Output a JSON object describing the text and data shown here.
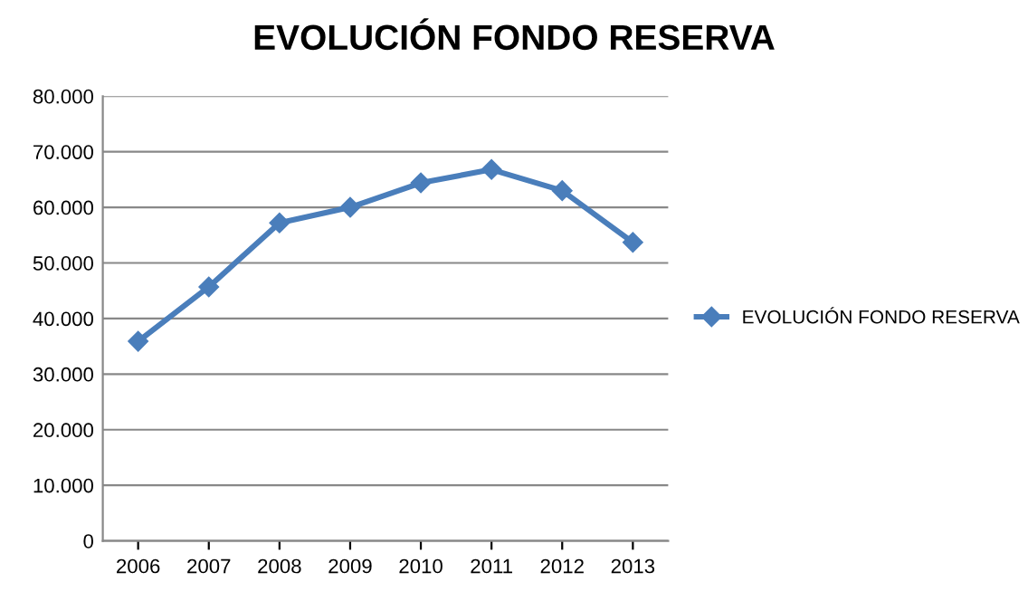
{
  "chart_data": {
    "type": "line",
    "title": "EVOLUCIÓN FONDO RESERVA",
    "categories": [
      "2006",
      "2007",
      "2008",
      "2009",
      "2010",
      "2011",
      "2012",
      "2013"
    ],
    "series": [
      {
        "name": "EVOLUCIÓN FONDO RESERVA",
        "color": "#4a7ebb",
        "values": [
          35900,
          45700,
          57200,
          60000,
          64400,
          66800,
          63000,
          53700
        ]
      }
    ],
    "ylim": [
      0,
      80000
    ],
    "yticks": [
      {
        "value": 0,
        "label": "0"
      },
      {
        "value": 10000,
        "label": "10.000"
      },
      {
        "value": 20000,
        "label": "20.000"
      },
      {
        "value": 30000,
        "label": "30.000"
      },
      {
        "value": 40000,
        "label": "40.000"
      },
      {
        "value": 50000,
        "label": "50.000"
      },
      {
        "value": 60000,
        "label": "60.000"
      },
      {
        "value": 70000,
        "label": "70.000"
      },
      {
        "value": 80000,
        "label": "80.000"
      }
    ],
    "grid": "y",
    "legend": "right",
    "marker": "diamond",
    "line_style": "solid"
  }
}
